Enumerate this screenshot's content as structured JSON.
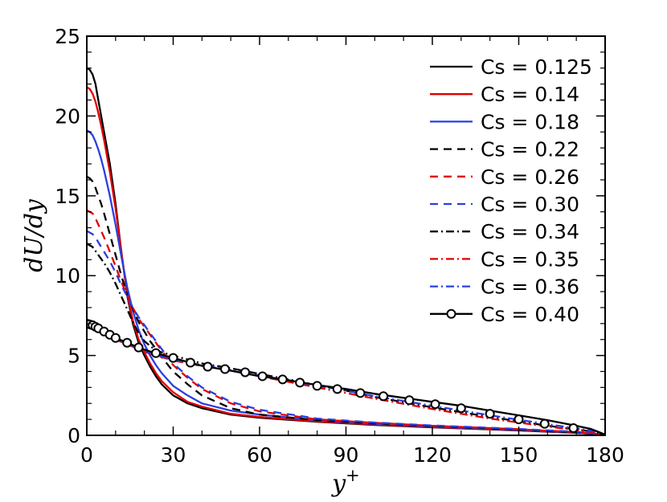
{
  "chart_data": {
    "type": "line",
    "title": "",
    "xlabel": "y+",
    "ylabel": "dU/dy",
    "xlim": [
      0,
      180
    ],
    "ylim": [
      0,
      25
    ],
    "xticks": [
      0,
      30,
      60,
      90,
      120,
      150,
      180
    ],
    "yticks": [
      0,
      5,
      10,
      15,
      20,
      25
    ],
    "x_tick_labels": [
      "0",
      "30",
      "60",
      "90",
      "120",
      "150",
      "180"
    ],
    "y_tick_labels": [
      "0",
      "5",
      "10",
      "15",
      "20",
      "25"
    ],
    "legend_position": "top-right",
    "grid": false,
    "series": [
      {
        "name": "Cs = 0.125",
        "color": "#000000",
        "dash": "solid",
        "marker": "none",
        "x": [
          0,
          1,
          2,
          3,
          4,
          5,
          6,
          8,
          10,
          12,
          14,
          16,
          18,
          20,
          22,
          24,
          26,
          30,
          35,
          40,
          50,
          60,
          80,
          100,
          120,
          150,
          170,
          180
        ],
        "y": [
          23.0,
          22.9,
          22.6,
          22.0,
          21.0,
          20.0,
          19.0,
          17.0,
          14.5,
          11.5,
          8.8,
          7.0,
          5.8,
          5.0,
          4.3,
          3.7,
          3.2,
          2.5,
          2.0,
          1.7,
          1.3,
          1.1,
          0.85,
          0.65,
          0.5,
          0.3,
          0.15,
          0.05
        ]
      },
      {
        "name": "Cs = 0.14",
        "color": "#e00000",
        "dash": "solid",
        "marker": "none",
        "x": [
          0,
          1,
          2,
          3,
          4,
          5,
          6,
          8,
          10,
          12,
          14,
          16,
          18,
          20,
          22,
          24,
          26,
          30,
          35,
          40,
          50,
          60,
          80,
          100,
          120,
          150,
          170,
          180
        ],
        "y": [
          21.8,
          21.7,
          21.4,
          20.9,
          20.2,
          19.4,
          18.5,
          16.5,
          14.2,
          11.5,
          8.9,
          7.2,
          6.0,
          5.2,
          4.5,
          3.9,
          3.4,
          2.7,
          2.1,
          1.8,
          1.35,
          1.15,
          0.88,
          0.68,
          0.52,
          0.32,
          0.16,
          0.05
        ]
      },
      {
        "name": "Cs = 0.18",
        "color": "#2a3fe0",
        "dash": "solid",
        "marker": "none",
        "x": [
          0,
          1,
          2,
          3,
          4,
          5,
          6,
          8,
          10,
          12,
          14,
          16,
          18,
          20,
          22,
          24,
          26,
          30,
          35,
          40,
          50,
          60,
          80,
          100,
          120,
          150,
          170,
          180
        ],
        "y": [
          19.1,
          19.0,
          18.8,
          18.4,
          17.9,
          17.3,
          16.6,
          15.0,
          13.2,
          11.2,
          9.3,
          7.8,
          6.6,
          5.7,
          5.0,
          4.4,
          3.9,
          3.1,
          2.5,
          2.0,
          1.55,
          1.3,
          0.95,
          0.72,
          0.55,
          0.34,
          0.17,
          0.05
        ]
      },
      {
        "name": "Cs = 0.22",
        "color": "#000000",
        "dash": "10,7",
        "marker": "none",
        "x": [
          0,
          1,
          2,
          3,
          4,
          5,
          6,
          8,
          10,
          12,
          14,
          16,
          18,
          20,
          22,
          24,
          26,
          30,
          35,
          40,
          50,
          60,
          80,
          100,
          120,
          150,
          170,
          180
        ],
        "y": [
          16.2,
          16.1,
          15.9,
          15.5,
          15.0,
          14.5,
          13.9,
          12.6,
          11.3,
          10.0,
          8.8,
          7.9,
          7.1,
          6.5,
          5.9,
          5.4,
          4.9,
          4.0,
          3.2,
          2.5,
          1.7,
          1.3,
          0.95,
          0.75,
          0.58,
          0.36,
          0.18,
          0.05
        ]
      },
      {
        "name": "Cs = 0.26",
        "color": "#e00000",
        "dash": "10,7",
        "marker": "none",
        "x": [
          0,
          1,
          2,
          3,
          4,
          5,
          6,
          8,
          10,
          12,
          14,
          16,
          18,
          20,
          22,
          24,
          26,
          30,
          35,
          40,
          50,
          60,
          80,
          100,
          120,
          150,
          170,
          180
        ],
        "y": [
          14.1,
          14.0,
          13.9,
          13.6,
          13.2,
          12.8,
          12.4,
          11.5,
          10.6,
          9.6,
          8.8,
          8.0,
          7.3,
          6.8,
          6.3,
          5.8,
          5.3,
          4.4,
          3.6,
          2.9,
          2.0,
          1.5,
          1.0,
          0.78,
          0.6,
          0.38,
          0.2,
          0.05
        ]
      },
      {
        "name": "Cs = 0.30",
        "color": "#2a3fe0",
        "dash": "10,7",
        "marker": "none",
        "x": [
          0,
          1,
          2,
          3,
          4,
          5,
          6,
          8,
          10,
          12,
          14,
          16,
          18,
          20,
          22,
          24,
          26,
          30,
          35,
          40,
          50,
          60,
          80,
          100,
          120,
          150,
          170,
          180
        ],
        "y": [
          12.8,
          12.7,
          12.6,
          12.4,
          12.1,
          11.8,
          11.5,
          10.9,
          10.2,
          9.4,
          8.7,
          8.0,
          7.4,
          6.9,
          6.4,
          5.9,
          5.4,
          4.5,
          3.7,
          3.0,
          2.1,
          1.6,
          1.05,
          0.8,
          0.62,
          0.4,
          0.22,
          0.05
        ]
      },
      {
        "name": "Cs = 0.34",
        "color": "#000000",
        "dash": "10,4,2,4",
        "marker": "none",
        "x": [
          0,
          2,
          4,
          6,
          8,
          10,
          12,
          14,
          16,
          18,
          20,
          24,
          28,
          32,
          36,
          40,
          45,
          50,
          60,
          70,
          80,
          90,
          100,
          120,
          140,
          160,
          175,
          180
        ],
        "y": [
          12.0,
          11.8,
          11.3,
          10.8,
          10.2,
          9.5,
          8.7,
          7.9,
          7.1,
          6.4,
          5.9,
          5.3,
          5.1,
          4.9,
          4.7,
          4.5,
          4.35,
          4.2,
          3.85,
          3.5,
          3.15,
          2.8,
          2.4,
          1.75,
          1.15,
          0.6,
          0.25,
          0.05
        ]
      },
      {
        "name": "Cs = 0.35",
        "color": "#e00000",
        "dash": "10,4,2,4",
        "marker": "none",
        "x": [
          0,
          2,
          4,
          6,
          8,
          10,
          14,
          18,
          22,
          26,
          30,
          35,
          40,
          50,
          60,
          70,
          80,
          90,
          100,
          120,
          140,
          160,
          175,
          180
        ],
        "y": [
          7.0,
          6.85,
          6.65,
          6.4,
          6.2,
          6.0,
          5.7,
          5.4,
          5.1,
          4.9,
          4.7,
          4.5,
          4.35,
          4.05,
          3.7,
          3.35,
          3.0,
          2.65,
          2.3,
          1.65,
          1.05,
          0.55,
          0.22,
          0.05
        ]
      },
      {
        "name": "Cs = 0.36",
        "color": "#2a3fe0",
        "dash": "10,4,2,4",
        "marker": "none",
        "x": [
          0,
          2,
          4,
          6,
          8,
          10,
          14,
          18,
          22,
          26,
          30,
          35,
          40,
          50,
          60,
          70,
          80,
          90,
          100,
          120,
          140,
          160,
          175,
          180
        ],
        "y": [
          7.0,
          6.85,
          6.65,
          6.45,
          6.25,
          6.05,
          5.75,
          5.45,
          5.15,
          4.95,
          4.75,
          4.55,
          4.4,
          4.1,
          3.75,
          3.45,
          3.1,
          2.8,
          2.45,
          1.85,
          1.25,
          0.7,
          0.3,
          0.05
        ]
      },
      {
        "name": "Cs = 0.40",
        "color": "#000000",
        "dash": "solid",
        "marker": "circle",
        "x": [
          0,
          1,
          2,
          3,
          4,
          6,
          8,
          10,
          14,
          18,
          22,
          26,
          30,
          35,
          40,
          50,
          60,
          70,
          80,
          90,
          100,
          110,
          120,
          130,
          140,
          150,
          160,
          170,
          175,
          180
        ],
        "y": [
          7.0,
          6.95,
          6.9,
          6.8,
          6.7,
          6.5,
          6.3,
          6.1,
          5.8,
          5.5,
          5.25,
          5.05,
          4.85,
          4.6,
          4.35,
          4.05,
          3.7,
          3.45,
          3.15,
          2.9,
          2.6,
          2.35,
          2.1,
          1.85,
          1.55,
          1.25,
          0.95,
          0.6,
          0.4,
          0.05
        ],
        "marker_x": [
          0,
          1,
          2,
          3,
          4,
          6,
          8,
          10,
          14,
          18,
          24,
          30,
          36,
          42,
          48,
          55,
          61,
          68,
          74,
          80,
          87,
          95,
          103,
          112,
          121,
          130,
          140,
          150,
          159,
          169
        ],
        "marker_y": [
          7.0,
          6.95,
          6.9,
          6.8,
          6.7,
          6.5,
          6.3,
          6.1,
          5.8,
          5.5,
          5.15,
          4.85,
          4.55,
          4.3,
          4.15,
          3.95,
          3.7,
          3.5,
          3.3,
          3.1,
          2.9,
          2.65,
          2.45,
          2.2,
          1.95,
          1.7,
          1.35,
          1.0,
          0.72,
          0.45
        ]
      }
    ]
  }
}
